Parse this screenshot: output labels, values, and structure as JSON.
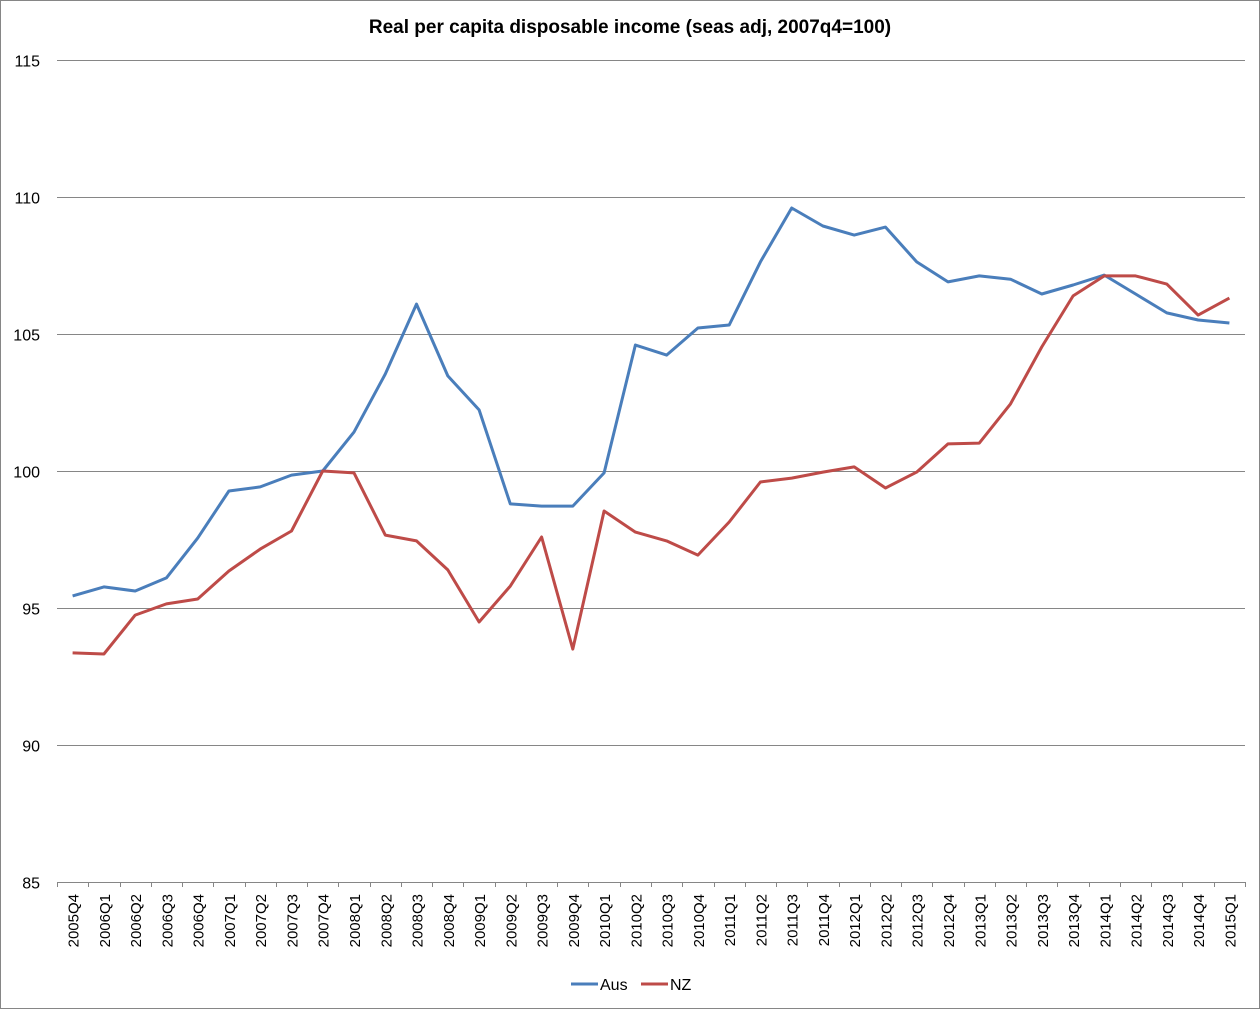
{
  "chart_data": {
    "type": "line",
    "title": "Real per capita disposable income (seas adj, 2007q4=100)",
    "xlabel": "",
    "ylabel": "",
    "ylim": [
      85,
      115
    ],
    "yticks": [
      85,
      90,
      95,
      100,
      105,
      110,
      115
    ],
    "grid": true,
    "legend_position": "bottom",
    "categories": [
      "2005Q4",
      "2006Q1",
      "2006Q2",
      "2006Q3",
      "2006Q4",
      "2007Q1",
      "2007Q2",
      "2007Q3",
      "2007Q4",
      "2008Q1",
      "2008Q2",
      "2008Q3",
      "2008Q4",
      "2009Q1",
      "2009Q2",
      "2009Q3",
      "2009Q4",
      "2010Q1",
      "2010Q2",
      "2010Q3",
      "2010Q4",
      "2011Q1",
      "2011Q2",
      "2011Q3",
      "2011Q4",
      "2012Q1",
      "2012Q2",
      "2012Q3",
      "2012Q4",
      "2013Q1",
      "2013Q2",
      "2013Q3",
      "2013Q4",
      "2014Q1",
      "2014Q2",
      "2014Q3",
      "2014Q4",
      "2015Q1"
    ],
    "series": [
      {
        "name": "Aus",
        "color": "#4a7ebb",
        "values": [
          95.44,
          95.77,
          95.62,
          96.1,
          97.55,
          99.27,
          99.42,
          99.85,
          100,
          101.42,
          103.54,
          106.09,
          103.47,
          102.23,
          98.8,
          98.72,
          98.72,
          99.93,
          104.6,
          104.23,
          105.22,
          105.33,
          107.63,
          109.6,
          108.94,
          108.61,
          108.9,
          107.63,
          106.9,
          107.12,
          107.0,
          106.46,
          106.79,
          107.15,
          106.46,
          105.77,
          105.51,
          105.4
        ]
      },
      {
        "name": "NZ",
        "color": "#be4b48",
        "values": [
          93.36,
          93.32,
          94.74,
          95.15,
          95.33,
          96.35,
          97.15,
          97.81,
          100,
          99.93,
          97.66,
          97.45,
          96.39,
          94.49,
          95.8,
          97.59,
          93.5,
          98.54,
          97.77,
          97.45,
          96.93,
          98.14,
          99.6,
          99.74,
          99.96,
          100.15,
          99.38,
          99.96,
          100.99,
          101.02,
          102.45,
          104.53,
          106.39,
          107.12,
          107.12,
          106.82,
          105.69,
          106.31
        ]
      }
    ]
  }
}
